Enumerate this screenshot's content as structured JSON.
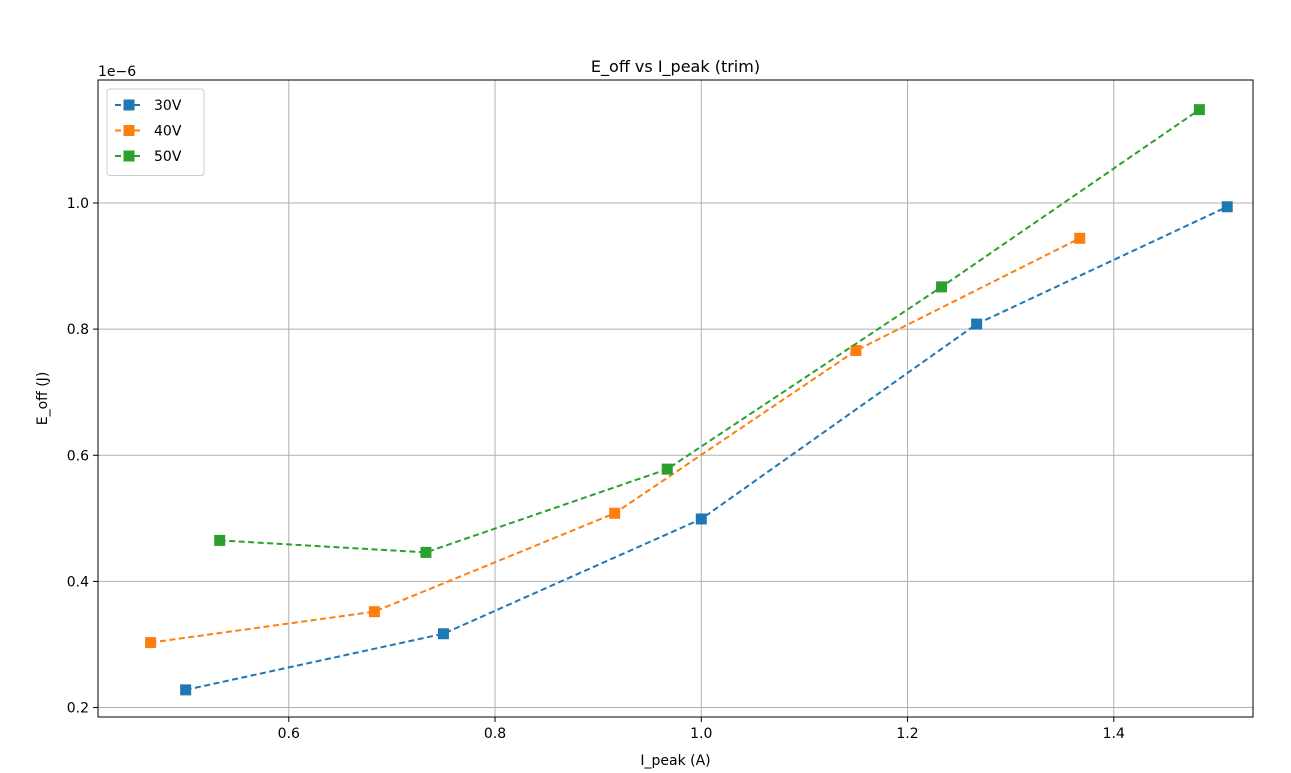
{
  "chart_data": {
    "type": "line",
    "title": "E_off vs I_peak (trim)",
    "xlabel": "I_peak (A)",
    "ylabel": "E_off (J)",
    "y_offset_label": "1e−6",
    "xlim": [
      0.415,
      1.535
    ],
    "ylim": [
      0.185,
      1.195
    ],
    "x_ticks": [
      0.6,
      0.8,
      1.0,
      1.2,
      1.4
    ],
    "x_tick_labels": [
      "0.6",
      "0.8",
      "1.0",
      "1.2",
      "1.4"
    ],
    "y_ticks": [
      0.2,
      0.4,
      0.6,
      0.8,
      1.0
    ],
    "y_tick_labels": [
      "0.2",
      "0.4",
      "0.6",
      "0.8",
      "1.0"
    ],
    "grid": true,
    "legend_position": "top-left",
    "marker": "square",
    "line_style": "dashed",
    "series": [
      {
        "name": "30V",
        "color": "#1f77b4",
        "x": [
          0.5,
          0.75,
          1.0,
          1.267,
          1.51
        ],
        "y": [
          0.228,
          0.317,
          0.499,
          0.808,
          0.994
        ]
      },
      {
        "name": "40V",
        "color": "#ff7f0e",
        "x": [
          0.466,
          0.683,
          0.916,
          1.15,
          1.367
        ],
        "y": [
          0.303,
          0.352,
          0.508,
          0.766,
          0.944
        ]
      },
      {
        "name": "50V",
        "color": "#2ca02c",
        "x": [
          0.533,
          0.733,
          0.967,
          1.233,
          1.483
        ],
        "y": [
          0.465,
          0.446,
          0.578,
          0.867,
          1.148
        ]
      }
    ]
  }
}
